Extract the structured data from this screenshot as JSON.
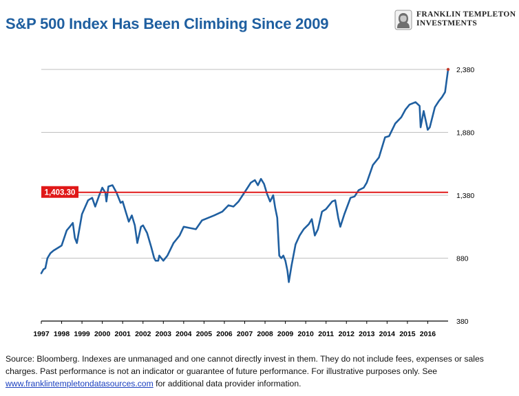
{
  "header": {
    "title": "S&P 500 Index Has Been Climbing Since 2009",
    "logo": {
      "line1": "FRANKLIN TEMPLETON",
      "line2": "INVESTMENTS",
      "icon": "franklin-portrait-logo-icon"
    }
  },
  "colors": {
    "title": "#1f5fa0",
    "series": "#1f5fa0",
    "reference": "#e01818",
    "grid": "#bfbfbf"
  },
  "chart_data": {
    "type": "line",
    "title": "S&P 500 Index Has Been Climbing Since 2009",
    "xlabel": "",
    "ylabel": "",
    "xlim": [
      1997.0,
      2017.0
    ],
    "ylim": [
      380,
      2380
    ],
    "y_ticks": [
      "2,380",
      "1,880",
      "1,380",
      "880",
      "380"
    ],
    "y_tick_values": [
      2380,
      1880,
      1380,
      880,
      380
    ],
    "x_ticks": [
      "1997",
      "1998",
      "1999",
      "2000",
      "2001",
      "2002",
      "2003",
      "2004",
      "2005",
      "2006",
      "2007",
      "2008",
      "2009",
      "2010",
      "2011",
      "2012",
      "2013",
      "2014",
      "2015",
      "2016"
    ],
    "grid": "horizontal",
    "reference_line": {
      "label": "1,403.30",
      "value": 1403.3
    },
    "series": [
      {
        "x": [
          1997.0,
          1997.1,
          1997.2,
          1997.3,
          1997.45,
          1997.6,
          1997.8,
          1997.9,
          1998.0,
          1998.25,
          1998.4,
          1998.55,
          1998.65,
          1998.75,
          1999.0,
          1999.3,
          1999.5,
          1999.65,
          1999.85,
          2000.0,
          2000.15,
          2000.2,
          2000.3,
          2000.5,
          2000.7,
          2000.9,
          2001.0,
          2001.15,
          2001.3,
          2001.45,
          2001.6,
          2001.72,
          2001.9,
          2002.0,
          2002.2,
          2002.4,
          2002.55,
          2002.62,
          2002.75,
          2002.8,
          2002.9,
          2003.0,
          2003.2,
          2003.5,
          2003.8,
          2004.0,
          2004.3,
          2004.6,
          2004.9,
          2005.2,
          2005.5,
          2005.9,
          2006.2,
          2006.45,
          2006.7,
          2006.9,
          2007.1,
          2007.3,
          2007.5,
          2007.65,
          2007.8,
          2007.95,
          2008.1,
          2008.25,
          2008.4,
          2008.5,
          2008.6,
          2008.7,
          2008.8,
          2008.9,
          2009.0,
          2009.1,
          2009.17,
          2009.3,
          2009.5,
          2009.7,
          2009.9,
          2010.15,
          2010.3,
          2010.45,
          2010.6,
          2010.8,
          2011.0,
          2011.3,
          2011.45,
          2011.6,
          2011.7,
          2011.9,
          2012.2,
          2012.4,
          2012.6,
          2012.85,
          2013.0,
          2013.3,
          2013.6,
          2013.9,
          2014.1,
          2014.4,
          2014.7,
          2014.9,
          2015.1,
          2015.4,
          2015.6,
          2015.65,
          2015.8,
          2016.0,
          2016.1,
          2016.35,
          2016.55,
          2016.7,
          2016.85,
          2017.0
        ],
        "values": [
          760,
          790,
          800,
          880,
          920,
          940,
          960,
          970,
          980,
          1100,
          1130,
          1160,
          1040,
          1000,
          1230,
          1340,
          1360,
          1290,
          1380,
          1440,
          1400,
          1330,
          1450,
          1460,
          1400,
          1320,
          1330,
          1250,
          1170,
          1220,
          1140,
          1000,
          1130,
          1140,
          1080,
          970,
          880,
          860,
          860,
          900,
          880,
          860,
          900,
          1000,
          1060,
          1130,
          1120,
          1110,
          1180,
          1200,
          1220,
          1250,
          1300,
          1290,
          1330,
          1380,
          1430,
          1480,
          1500,
          1460,
          1510,
          1470,
          1390,
          1330,
          1380,
          1280,
          1200,
          900,
          880,
          900,
          860,
          780,
          690,
          820,
          990,
          1060,
          1110,
          1150,
          1190,
          1060,
          1110,
          1250,
          1270,
          1330,
          1340,
          1200,
          1130,
          1230,
          1360,
          1370,
          1420,
          1440,
          1480,
          1620,
          1680,
          1840,
          1850,
          1950,
          2000,
          2060,
          2100,
          2120,
          2090,
          1920,
          2050,
          1900,
          1920,
          2080,
          2130,
          2160,
          2200,
          2380
        ]
      }
    ]
  },
  "footer": {
    "text_before_link": "Source: Bloomberg. Indexes are unmanaged and one cannot directly invest in them. They do not include fees, expenses or sales charges. Past performance is not an indicator or guarantee of future performance. For illustrative purposes only. See ",
    "link": "www.franklintempletondatasources.com",
    "text_after_link": " for additional data provider information."
  }
}
